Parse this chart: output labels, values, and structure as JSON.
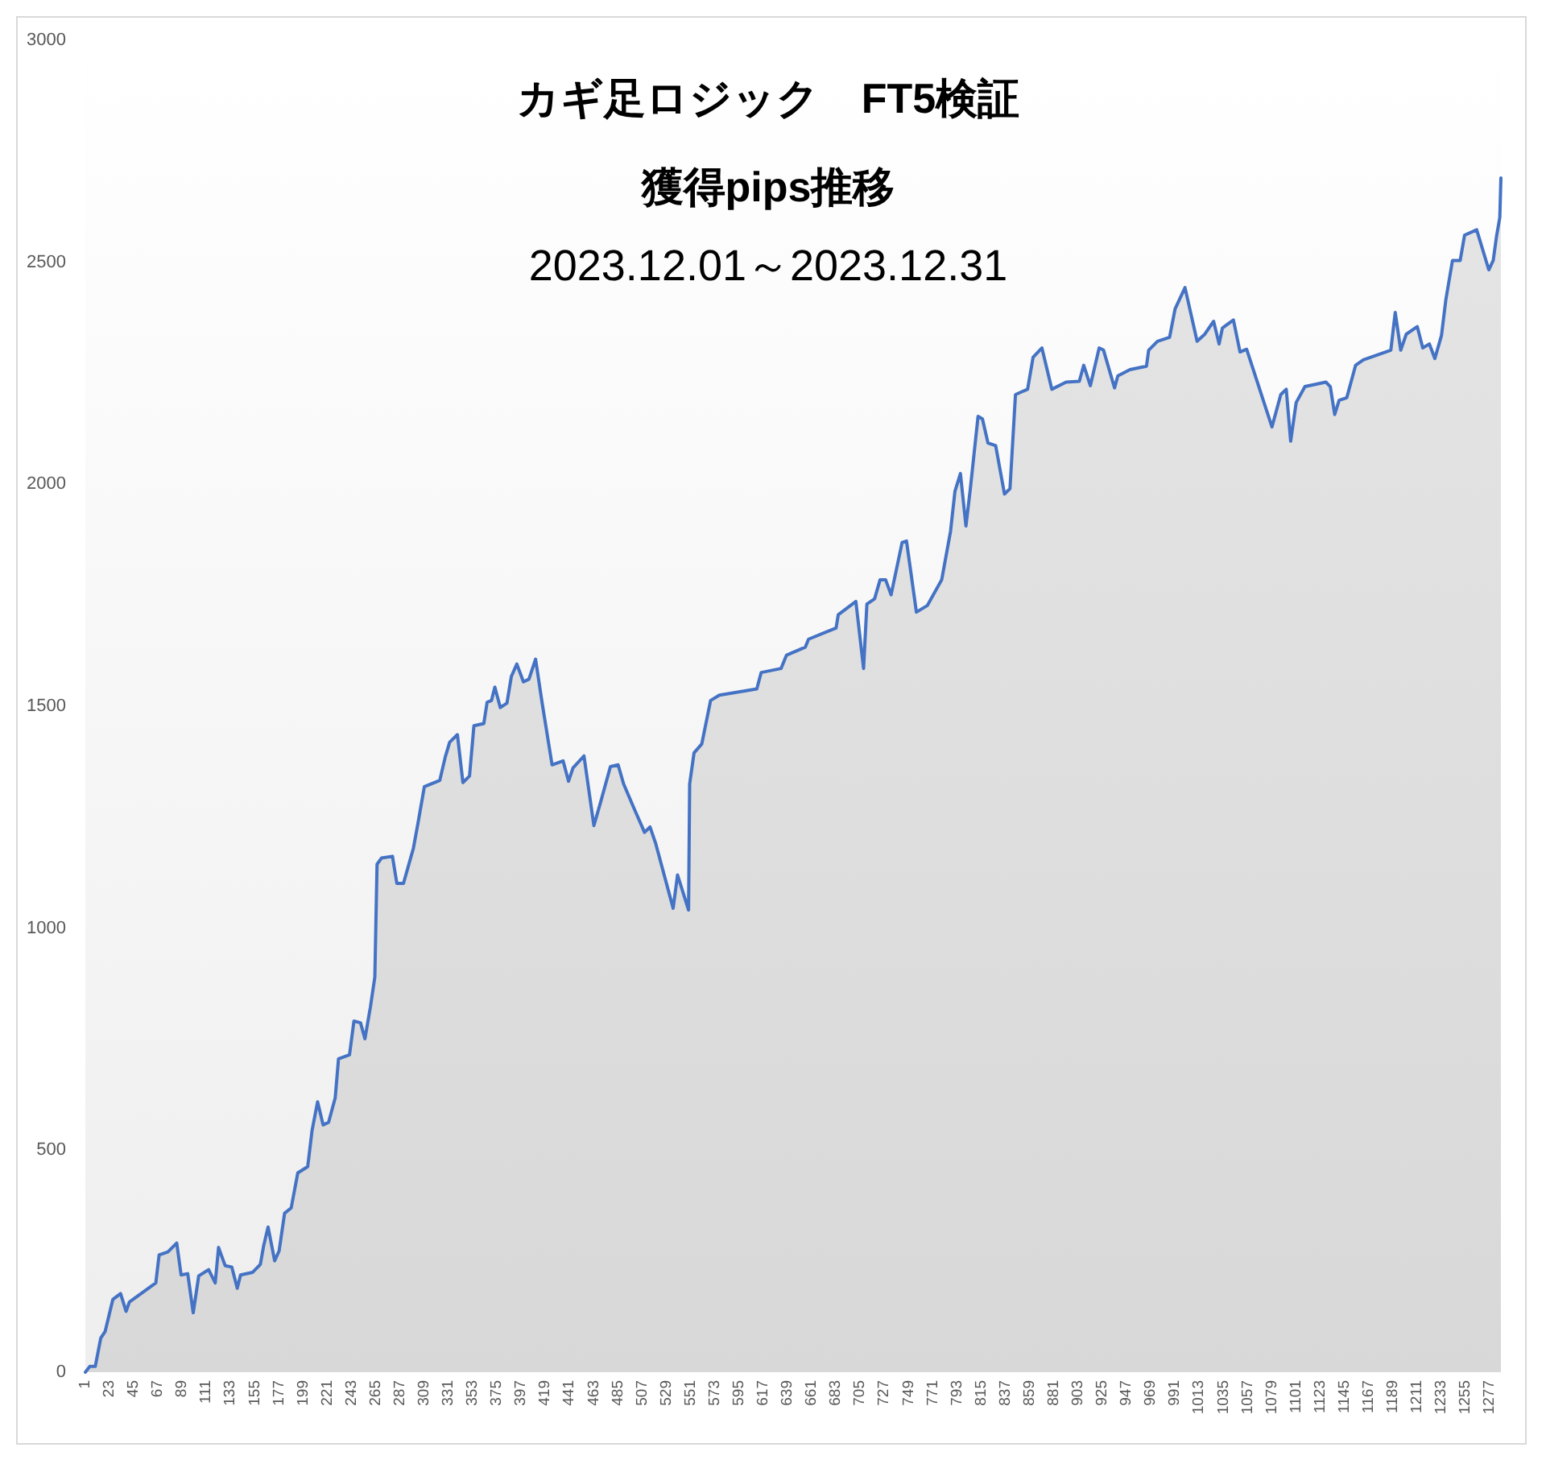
{
  "chart_data": {
    "type": "area",
    "title": "カギ足ロジック　FT5検証",
    "subtitle": "獲得pips推移",
    "annotations": [
      "2023.12.01～2023.12.31"
    ],
    "x": [
      1,
      5,
      10,
      15,
      19,
      26,
      33,
      38,
      41,
      65,
      68,
      76,
      84,
      88,
      94,
      99,
      104,
      113,
      119,
      122,
      128,
      134,
      139,
      142,
      153,
      160,
      163,
      167,
      173,
      177,
      182,
      188,
      194,
      203,
      207,
      212,
      217,
      222,
      228,
      231,
      241,
      245,
      251,
      255,
      260,
      264,
      266,
      270,
      280,
      284,
      290,
      299,
      303,
      309,
      323,
      328,
      332,
      339,
      344,
      350,
      354,
      363,
      366,
      370,
      373,
      378,
      384,
      388,
      393,
      399,
      404,
      410,
      416,
      425,
      435,
      440,
      444,
      454,
      463,
      469,
      478,
      485,
      490,
      500,
      509,
      514,
      519,
      535,
      539,
      549,
      550,
      554,
      561,
      569,
      577,
      611,
      615,
      633,
      638,
      655,
      658,
      683,
      685,
      701,
      708,
      711,
      718,
      723,
      728,
      733,
      743,
      747,
      756,
      766,
      779,
      787,
      791,
      796,
      801,
      805,
      812,
      816,
      821,
      828,
      836,
      841,
      846,
      857,
      862,
      870,
      879,
      892,
      904,
      908,
      914,
      922,
      926,
      936,
      939,
      950,
      965,
      967,
      975,
      986,
      991,
      1000,
      1011,
      1018,
      1026,
      1031,
      1034,
      1044,
      1050,
      1056,
      1079,
      1087,
      1092,
      1096,
      1101,
      1109,
      1128,
      1132,
      1136,
      1140,
      1147,
      1155,
      1162,
      1187,
      1191,
      1196,
      1201,
      1211,
      1216,
      1222,
      1227,
      1233,
      1237,
      1243,
      1250,
      1254,
      1265,
      1276,
      1280,
      1283,
      1286,
      1287
    ],
    "series": [
      {
        "color": "#4472c4",
        "values": [
          0,
          13,
          13,
          77,
          92,
          164,
          177,
          137,
          158,
          201,
          264,
          271,
          291,
          219,
          222,
          134,
          217,
          231,
          201,
          281,
          240,
          237,
          189,
          219,
          225,
          243,
          285,
          327,
          251,
          273,
          358,
          370,
          449,
          463,
          545,
          609,
          557,
          563,
          618,
          706,
          715,
          791,
          787,
          751,
          823,
          890,
          1144,
          1158,
          1162,
          1101,
          1101,
          1180,
          1234,
          1319,
          1333,
          1386,
          1419,
          1436,
          1328,
          1343,
          1456,
          1461,
          1509,
          1513,
          1543,
          1497,
          1507,
          1567,
          1595,
          1555,
          1561,
          1606,
          1507,
          1368,
          1377,
          1331,
          1361,
          1388,
          1231,
          1283,
          1364,
          1368,
          1325,
          1267,
          1216,
          1228,
          1192,
          1045,
          1120,
          1041,
          1325,
          1395,
          1415,
          1513,
          1525,
          1539,
          1576,
          1585,
          1615,
          1633,
          1651,
          1676,
          1706,
          1736,
          1585,
          1730,
          1742,
          1785,
          1785,
          1751,
          1869,
          1872,
          1712,
          1727,
          1785,
          1894,
          1984,
          2024,
          1906,
          1990,
          2153,
          2147,
          2093,
          2087,
          1978,
          1990,
          2202,
          2214,
          2286,
          2307,
          2214,
          2230,
          2232,
          2268,
          2222,
          2307,
          2302,
          2217,
          2244,
          2258,
          2266,
          2302,
          2322,
          2331,
          2395,
          2443,
          2322,
          2338,
          2367,
          2316,
          2352,
          2370,
          2298,
          2304,
          2129,
          2202,
          2214,
          2097,
          2184,
          2220,
          2230,
          2220,
          2157,
          2189,
          2195,
          2268,
          2280,
          2302,
          2387,
          2302,
          2338,
          2355,
          2307,
          2316,
          2283,
          2335,
          2416,
          2504,
          2504,
          2561,
          2573,
          2483,
          2504,
          2558,
          2601,
          2690
        ]
      }
    ],
    "xlim": [
      1,
      1287
    ],
    "xticks": [
      1,
      23,
      45,
      67,
      89,
      111,
      133,
      155,
      177,
      199,
      221,
      243,
      265,
      287,
      309,
      331,
      353,
      375,
      397,
      419,
      441,
      463,
      485,
      507,
      529,
      551,
      573,
      595,
      617,
      639,
      661,
      683,
      705,
      727,
      749,
      771,
      793,
      815,
      837,
      859,
      881,
      903,
      925,
      947,
      969,
      991,
      1013,
      1035,
      1057,
      1079,
      1101,
      1123,
      1145,
      1167,
      1189,
      1211,
      1233,
      1255,
      1277
    ],
    "ylim": [
      0,
      3000
    ],
    "yticks": [
      0,
      500,
      1000,
      1500,
      2000,
      2500,
      3000
    ]
  }
}
